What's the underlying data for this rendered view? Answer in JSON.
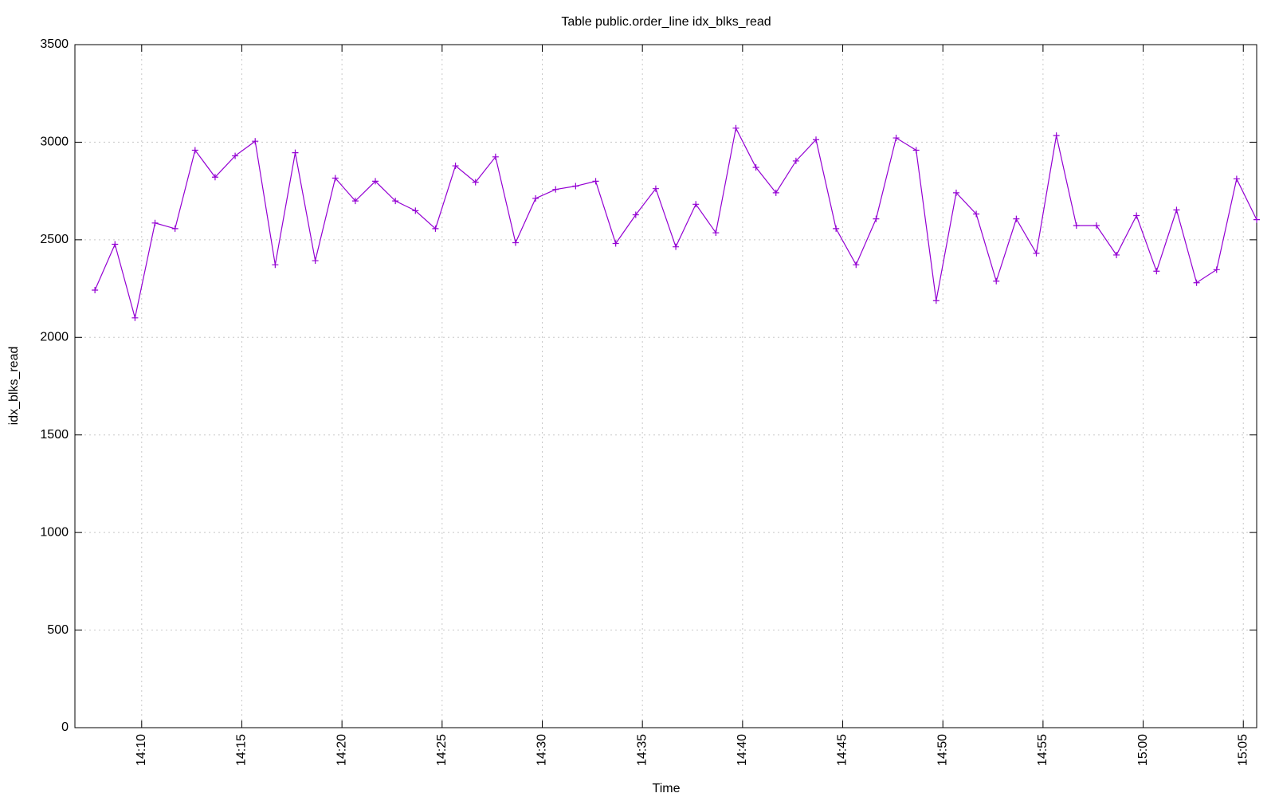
{
  "chart_data": {
    "type": "line",
    "title": "Table public.order_line idx_blks_read",
    "xlabel": "Time",
    "ylabel": "idx_blks_read",
    "x": [
      "14:07:40",
      "14:08:40",
      "14:09:40",
      "14:10:40",
      "14:11:40",
      "14:12:40",
      "14:13:40",
      "14:14:40",
      "14:15:40",
      "14:16:40",
      "14:17:40",
      "14:18:40",
      "14:19:40",
      "14:20:40",
      "14:21:40",
      "14:22:40",
      "14:23:40",
      "14:24:40",
      "14:25:40",
      "14:26:40",
      "14:27:40",
      "14:28:40",
      "14:29:40",
      "14:30:40",
      "14:31:40",
      "14:32:40",
      "14:33:40",
      "14:34:40",
      "14:35:40",
      "14:36:40",
      "14:37:40",
      "14:38:40",
      "14:39:40",
      "14:40:40",
      "14:41:40",
      "14:42:40",
      "14:43:40",
      "14:44:40",
      "14:45:40",
      "14:46:40",
      "14:47:40",
      "14:48:40",
      "14:49:40",
      "14:50:40",
      "14:51:40",
      "14:52:40",
      "14:53:40",
      "14:54:40",
      "14:55:40",
      "14:56:40",
      "14:57:40",
      "14:58:40",
      "14:59:40",
      "15:00:40",
      "15:01:40",
      "15:02:40",
      "15:03:40",
      "15:04:40",
      "15:05:40"
    ],
    "values": [
      2242,
      2477,
      2100,
      2586,
      2557,
      2959,
      2821,
      2930,
      3005,
      2372,
      2946,
      2393,
      2816,
      2699,
      2800,
      2699,
      2649,
      2557,
      2879,
      2795,
      2925,
      2485,
      2712,
      2758,
      2775,
      2800,
      2481,
      2628,
      2762,
      2464,
      2682,
      2536,
      3072,
      2871,
      2741,
      2904,
      3013,
      2557,
      2372,
      2607,
      3022,
      2959,
      2188,
      2741,
      2632,
      2288,
      2607,
      2431,
      3034,
      2573,
      2573,
      2422,
      2624,
      2339,
      2653,
      2280,
      2347,
      2812,
      2603
    ],
    "color": "#9400d3",
    "xlim": [
      "14:06:40",
      "15:05:40"
    ],
    "xticks": [
      "14:10",
      "14:15",
      "14:20",
      "14:25",
      "14:30",
      "14:35",
      "14:40",
      "14:45",
      "14:50",
      "14:55",
      "15:00",
      "15:05"
    ],
    "ylim": [
      0,
      3500
    ],
    "yticks": [
      0,
      500,
      1000,
      1500,
      2000,
      2500,
      3000,
      3500
    ],
    "grid": true
  }
}
